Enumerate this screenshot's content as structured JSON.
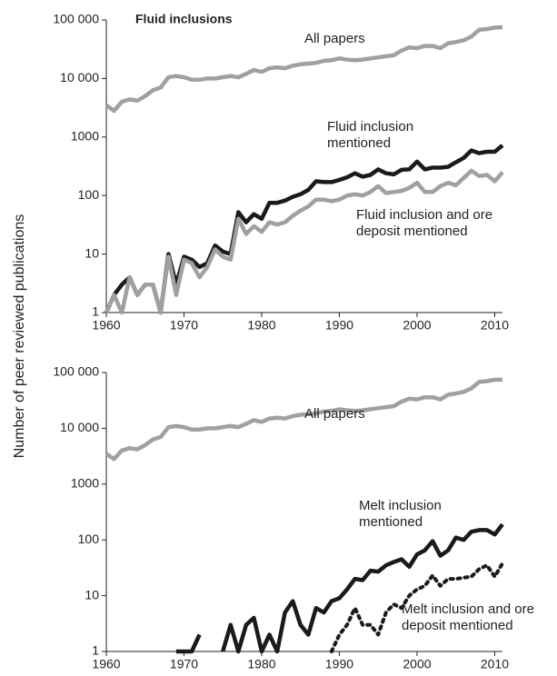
{
  "ylabel": "Number of peer reviewed publications",
  "chart_data": [
    {
      "type": "line",
      "title": "Fluid inclusions",
      "log": true,
      "x": [
        1960,
        1961,
        1962,
        1963,
        1964,
        1965,
        1966,
        1967,
        1968,
        1969,
        1970,
        1971,
        1972,
        1973,
        1974,
        1975,
        1976,
        1977,
        1978,
        1979,
        1980,
        1981,
        1982,
        1983,
        1984,
        1985,
        1986,
        1987,
        1988,
        1989,
        1990,
        1991,
        1992,
        1993,
        1994,
        1995,
        1996,
        1997,
        1998,
        1999,
        2000,
        2001,
        2002,
        2003,
        2004,
        2005,
        2006,
        2007,
        2008,
        2009,
        2010,
        2011
      ],
      "xlim": [
        1960,
        2011
      ],
      "xticks": [
        1960,
        1970,
        1980,
        1990,
        2000,
        2010
      ],
      "ylim": [
        1,
        100000
      ],
      "yticks": [
        1,
        10,
        100,
        1000,
        {
          "value": 10000,
          "label": "10 000"
        },
        {
          "value": 100000,
          "label": "100 000"
        }
      ],
      "series": [
        {
          "name": "All papers",
          "color": "#a0a0a0",
          "style": "solid",
          "values": [
            3500,
            2800,
            4000,
            4400,
            4200,
            5000,
            6300,
            7000,
            10500,
            11000,
            10500,
            9500,
            9500,
            10000,
            10000,
            10500,
            11000,
            10500,
            12000,
            14000,
            13000,
            15000,
            15500,
            15000,
            16500,
            17500,
            18000,
            18500,
            20000,
            20500,
            22000,
            21000,
            20500,
            21000,
            22000,
            23000,
            24000,
            25000,
            30000,
            34000,
            33000,
            36000,
            36000,
            33000,
            40000,
            42000,
            45000,
            52000,
            68000,
            70000,
            74000,
            75000
          ]
        },
        {
          "name": "Fluid inclusion mentioned",
          "color": "#1a1a1a",
          "style": "solid",
          "values": [
            1,
            2,
            3,
            4,
            2,
            3,
            3,
            1,
            10,
            3,
            9,
            8,
            6,
            7,
            14,
            11,
            10,
            52,
            35,
            48,
            40,
            75,
            75,
            82,
            95,
            105,
            125,
            175,
            170,
            170,
            185,
            205,
            240,
            210,
            225,
            280,
            240,
            230,
            275,
            280,
            380,
            280,
            300,
            300,
            310,
            370,
            440,
            590,
            530,
            560,
            560,
            720
          ]
        },
        {
          "name": "Fluid inclusion and ore deposit mentioned",
          "color": "#a0a0a0",
          "style": "solid",
          "values": [
            1,
            2,
            1,
            4,
            2,
            3,
            3,
            1,
            9,
            2,
            8,
            7,
            4,
            6,
            12,
            9,
            8,
            40,
            22,
            30,
            24,
            35,
            32,
            35,
            45,
            55,
            65,
            85,
            85,
            80,
            85,
            100,
            105,
            100,
            115,
            145,
            110,
            115,
            120,
            135,
            165,
            115,
            115,
            145,
            165,
            150,
            200,
            265,
            215,
            225,
            175,
            250
          ]
        }
      ]
    },
    {
      "type": "line",
      "log": true,
      "x": [
        1960,
        1961,
        1962,
        1963,
        1964,
        1965,
        1966,
        1967,
        1968,
        1969,
        1970,
        1971,
        1972,
        1973,
        1974,
        1975,
        1976,
        1977,
        1978,
        1979,
        1980,
        1981,
        1982,
        1983,
        1984,
        1985,
        1986,
        1987,
        1988,
        1989,
        1990,
        1991,
        1992,
        1993,
        1994,
        1995,
        1996,
        1997,
        1998,
        1999,
        2000,
        2001,
        2002,
        2003,
        2004,
        2005,
        2006,
        2007,
        2008,
        2009,
        2010,
        2011
      ],
      "xlim": [
        1960,
        2011
      ],
      "xticks": [
        1960,
        1970,
        1980,
        1990,
        2000,
        2010
      ],
      "ylim": [
        1,
        100000
      ],
      "yticks": [
        1,
        10,
        100,
        1000,
        {
          "value": 10000,
          "label": "10 000"
        },
        {
          "value": 100000,
          "label": "100 000"
        }
      ],
      "series": [
        {
          "name": "All papers",
          "color": "#a0a0a0",
          "style": "solid",
          "values": [
            3500,
            2800,
            4000,
            4400,
            4200,
            5000,
            6300,
            7000,
            10500,
            11000,
            10500,
            9500,
            9500,
            10000,
            10000,
            10500,
            11000,
            10500,
            12000,
            14000,
            13000,
            15000,
            15500,
            15000,
            16500,
            17500,
            18000,
            18500,
            20000,
            20500,
            22000,
            21000,
            20500,
            21000,
            22000,
            23000,
            24000,
            25000,
            30000,
            34000,
            33000,
            36000,
            36000,
            33000,
            40000,
            42000,
            45000,
            52000,
            68000,
            70000,
            74000,
            75000
          ]
        },
        {
          "name": "Melt inclusion mentioned",
          "color": "#1a1a1a",
          "style": "solid",
          "values": [
            null,
            null,
            null,
            null,
            null,
            null,
            null,
            null,
            null,
            1,
            1,
            1,
            2,
            null,
            null,
            1,
            3,
            1,
            3,
            4,
            1,
            2,
            1,
            5,
            8,
            3,
            2,
            6,
            5,
            8,
            9,
            13,
            20,
            19,
            28,
            27,
            35,
            40,
            45,
            33,
            55,
            65,
            95,
            52,
            65,
            110,
            100,
            140,
            150,
            150,
            125,
            190
          ]
        },
        {
          "name": "Melt inclusion and ore deposit mentioned",
          "color": "#1a1a1a",
          "style": "dotted",
          "values": [
            null,
            null,
            null,
            null,
            null,
            null,
            null,
            null,
            null,
            null,
            null,
            null,
            null,
            null,
            null,
            null,
            null,
            null,
            null,
            null,
            null,
            null,
            null,
            null,
            null,
            null,
            null,
            null,
            null,
            1,
            2,
            3,
            6,
            3,
            3,
            2,
            5,
            7,
            6,
            10,
            13,
            15,
            23,
            15,
            20,
            20,
            21,
            22,
            30,
            35,
            22,
            38
          ]
        }
      ]
    }
  ]
}
